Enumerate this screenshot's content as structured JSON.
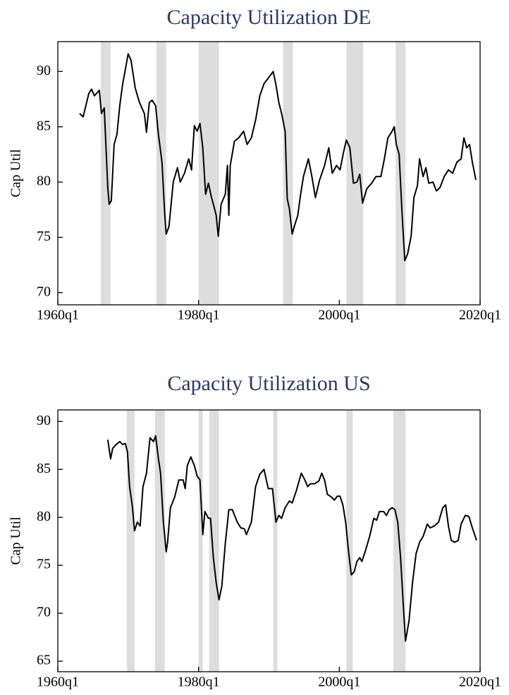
{
  "chart_data": [
    {
      "type": "line",
      "title": "Capacity Utilization DE",
      "y_label": "Cap Util",
      "xlim": [
        1960,
        2020
      ],
      "xticks": [
        {
          "value": 1960,
          "label": "1960q1"
        },
        {
          "value": 1980,
          "label": "1980q1"
        },
        {
          "value": 2000,
          "label": "2000q1"
        },
        {
          "value": 2020,
          "label": "2020q1"
        }
      ],
      "ylim": [
        68.9,
        92.7
      ],
      "yticks": [
        70,
        75,
        80,
        85,
        90
      ],
      "shaded_periods": [
        [
          1966.1,
          1967.5
        ],
        [
          1974.0,
          1975.4
        ],
        [
          1980.0,
          1982.9
        ],
        [
          1992.0,
          1993.4
        ],
        [
          2001.0,
          2003.4
        ],
        [
          2008.0,
          2009.4
        ]
      ],
      "shade_color": "#dddddd",
      "x": [
        1963.1,
        1963.6,
        1964.4,
        1964.8,
        1965.2,
        1965.9,
        1966.2,
        1966.6,
        1967.1,
        1967.3,
        1967.6,
        1968.0,
        1968.4,
        1968.8,
        1969.2,
        1970.0,
        1970.4,
        1971.0,
        1971.6,
        1972.3,
        1972.6,
        1973.0,
        1973.4,
        1973.9,
        1974.3,
        1974.8,
        1975.2,
        1975.4,
        1975.8,
        1976.4,
        1977.0,
        1977.4,
        1978.0,
        1978.6,
        1979.0,
        1979.4,
        1979.8,
        1980.2,
        1980.6,
        1981.0,
        1981.4,
        1981.8,
        1982.1,
        1982.5,
        1982.8,
        1983.2,
        1983.8,
        1984.1,
        1984.3,
        1984.5,
        1985.1,
        1985.7,
        1986.4,
        1986.9,
        1987.5,
        1988.1,
        1988.7,
        1989.3,
        1989.9,
        1990.6,
        1991.0,
        1991.4,
        1991.8,
        1992.3,
        1992.6,
        1992.9,
        1993.3,
        1993.7,
        1994.1,
        1994.5,
        1994.9,
        1995.6,
        1996.1,
        1996.6,
        1997.2,
        1997.9,
        1998.5,
        1999.0,
        1999.6,
        2000.1,
        2000.6,
        2001.0,
        2001.5,
        2002.0,
        2002.5,
        2002.9,
        2003.3,
        2003.9,
        2004.6,
        2005.2,
        2005.9,
        2006.4,
        2006.9,
        2007.5,
        2007.8,
        2008.1,
        2008.5,
        2008.9,
        2009.3,
        2009.7,
        2010.2,
        2010.6,
        2011.1,
        2011.4,
        2011.9,
        2012.3,
        2012.7,
        2013.3,
        2013.8,
        2014.3,
        2014.9,
        2015.5,
        2016.1,
        2016.7,
        2017.3,
        2017.7,
        2018.1,
        2018.5,
        2018.9,
        2019.4
      ],
      "series": [
        {
          "color": "#000000",
          "values": [
            86.2,
            85.9,
            88.0,
            88.4,
            87.8,
            88.3,
            86.2,
            86.7,
            79.5,
            78.0,
            78.3,
            83.4,
            84.3,
            86.9,
            88.8,
            91.6,
            91.0,
            88.5,
            87.2,
            86.2,
            84.5,
            87.2,
            87.4,
            86.9,
            84.3,
            81.8,
            77.0,
            75.3,
            76.0,
            80.0,
            81.3,
            80.0,
            80.8,
            82.1,
            81.1,
            85.1,
            84.6,
            85.3,
            83.1,
            78.9,
            79.9,
            78.7,
            78.0,
            77.0,
            75.1,
            78.0,
            78.9,
            81.5,
            77.0,
            81.5,
            83.7,
            84.0,
            84.6,
            83.4,
            84.0,
            85.6,
            87.8,
            88.9,
            89.4,
            90.0,
            88.8,
            87.2,
            86.2,
            84.6,
            78.5,
            77.6,
            75.3,
            76.2,
            77.0,
            78.9,
            80.5,
            82.1,
            80.5,
            78.6,
            80.2,
            81.5,
            83.1,
            80.8,
            81.5,
            81.1,
            82.7,
            83.8,
            83.1,
            79.9,
            80.0,
            80.7,
            78.1,
            79.4,
            79.9,
            80.5,
            80.5,
            82.1,
            84.0,
            84.6,
            85.0,
            83.4,
            82.5,
            77.3,
            72.9,
            73.5,
            75.1,
            78.6,
            79.7,
            82.1,
            80.5,
            81.3,
            79.9,
            80.0,
            79.2,
            79.5,
            80.5,
            81.1,
            80.8,
            81.8,
            82.1,
            84.0,
            83.1,
            83.4,
            81.8,
            80.2
          ]
        }
      ]
    },
    {
      "type": "line",
      "title": "Capacity Utilization US",
      "y_label": "Cap Util",
      "xlim": [
        1960,
        2020
      ],
      "xticks": [
        {
          "value": 1960,
          "label": "1960q1"
        },
        {
          "value": 1980,
          "label": "1980q1"
        },
        {
          "value": 2000,
          "label": "2000q1"
        },
        {
          "value": 2020,
          "label": "2020q1"
        }
      ],
      "ylim": [
        63.9,
        91.2
      ],
      "yticks": [
        65,
        70,
        75,
        80,
        85,
        90
      ],
      "shaded_periods": [
        [
          1969.8,
          1970.9
        ],
        [
          1973.8,
          1975.2
        ],
        [
          1980.0,
          1980.6
        ],
        [
          1981.5,
          1982.9
        ],
        [
          1990.6,
          1991.2
        ],
        [
          2001.0,
          2001.9
        ],
        [
          2007.7,
          2009.4
        ]
      ],
      "shade_color": "#dddddd",
      "x": [
        1967.1,
        1967.5,
        1967.8,
        1968.3,
        1968.8,
        1969.2,
        1969.6,
        1969.9,
        1970.2,
        1970.6,
        1970.9,
        1971.3,
        1971.7,
        1972.1,
        1972.6,
        1973.1,
        1973.6,
        1973.9,
        1974.3,
        1974.6,
        1975.0,
        1975.4,
        1975.6,
        1976.0,
        1976.6,
        1977.2,
        1977.8,
        1978.1,
        1978.4,
        1978.9,
        1979.4,
        1979.8,
        1980.2,
        1980.6,
        1980.9,
        1981.4,
        1981.7,
        1982.1,
        1982.5,
        1982.9,
        1983.3,
        1983.8,
        1984.3,
        1984.8,
        1985.5,
        1986.0,
        1986.5,
        1986.8,
        1987.5,
        1988.1,
        1988.7,
        1989.3,
        1989.9,
        1990.5,
        1991.0,
        1991.4,
        1991.8,
        1992.3,
        1992.9,
        1993.3,
        1993.9,
        1994.6,
        1995.1,
        1995.5,
        1995.9,
        1996.5,
        1997.1,
        1997.5,
        1997.9,
        1998.3,
        1998.9,
        1999.3,
        1999.7,
        2000.1,
        2000.5,
        2000.9,
        2001.3,
        2001.7,
        2002.1,
        2002.5,
        2002.9,
        2003.2,
        2003.7,
        2004.3,
        2004.9,
        2005.3,
        2005.7,
        2006.3,
        2006.7,
        2007.1,
        2007.5,
        2007.9,
        2008.3,
        2008.7,
        2009.1,
        2009.4,
        2009.9,
        2010.4,
        2010.9,
        2011.4,
        2011.9,
        2012.5,
        2012.9,
        2013.5,
        2014.1,
        2014.7,
        2015.1,
        2015.5,
        2015.9,
        2016.4,
        2016.9,
        2017.3,
        2017.9,
        2018.4,
        2018.9,
        2019.5
      ],
      "series": [
        {
          "color": "#000000",
          "values": [
            88.1,
            86.1,
            87.2,
            87.6,
            87.9,
            87.6,
            87.7,
            86.8,
            83.2,
            81.1,
            78.6,
            79.5,
            79.1,
            83.2,
            84.6,
            88.3,
            87.9,
            88.5,
            86.1,
            84.6,
            79.5,
            76.4,
            77.4,
            81.0,
            82.1,
            83.9,
            83.9,
            83.0,
            85.4,
            86.3,
            85.4,
            84.3,
            83.9,
            78.2,
            80.6,
            79.9,
            79.9,
            75.8,
            73.2,
            71.4,
            72.8,
            77.3,
            80.8,
            80.8,
            79.5,
            78.9,
            78.8,
            78.2,
            79.5,
            83.2,
            84.5,
            85.0,
            83.0,
            83.0,
            79.5,
            80.2,
            79.9,
            81.0,
            81.7,
            81.5,
            82.8,
            84.6,
            83.9,
            83.2,
            83.5,
            83.5,
            83.8,
            84.6,
            83.9,
            82.4,
            82.1,
            81.8,
            82.2,
            82.2,
            81.3,
            79.5,
            76.5,
            74.0,
            74.3,
            75.4,
            75.8,
            75.4,
            76.5,
            78.0,
            79.9,
            79.7,
            80.6,
            80.6,
            80.2,
            80.8,
            81.0,
            80.8,
            79.5,
            75.8,
            70.7,
            67.1,
            69.2,
            73.2,
            76.2,
            77.4,
            78.0,
            79.3,
            78.9,
            79.1,
            79.5,
            81.0,
            81.3,
            79.1,
            77.6,
            77.4,
            77.6,
            79.3,
            80.2,
            80.1,
            78.9,
            77.6
          ]
        }
      ]
    }
  ]
}
